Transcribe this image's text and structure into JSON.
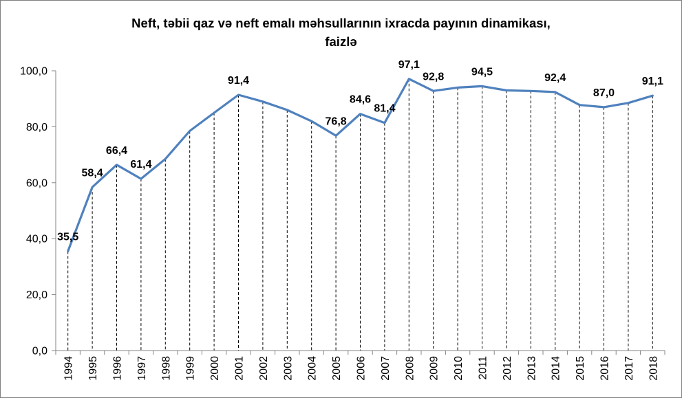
{
  "chart_data": {
    "type": "line",
    "title_line1": "Neft, təbii qaz və neft emalı məhsullarının ixracda payının dinamikası,",
    "title_line2": "faizlə",
    "categories": [
      "1994",
      "1995",
      "1996",
      "1997",
      "1998",
      "1999",
      "2000",
      "2001",
      "2002",
      "2003",
      "2004",
      "2005",
      "2006",
      "2007",
      "2008",
      "2009",
      "2010",
      "2011",
      "2012",
      "2013",
      "2014",
      "2015",
      "2016",
      "2017",
      "2018"
    ],
    "series": [
      {
        "values": [
          35.5,
          58.4,
          66.4,
          61.4,
          68.5,
          78.5,
          85.0,
          91.4,
          89.0,
          86.0,
          82.0,
          76.8,
          84.6,
          81.4,
          97.1,
          92.8,
          94.0,
          94.5,
          93.0,
          92.8,
          92.4,
          87.8,
          87.0,
          88.5,
          91.1
        ],
        "labels": [
          "35,5",
          "58,4",
          "66,4",
          "61,4",
          "",
          "",
          "",
          "91,4",
          "",
          "",
          "",
          "76,8",
          "84,6",
          "81,4",
          "97,1",
          "92,8",
          "",
          "94,5",
          "",
          "",
          "92,4",
          "",
          "87,0",
          "",
          "91,1"
        ],
        "color": "#4f81bd"
      }
    ],
    "y_ticks": [
      "0,0",
      "20,0",
      "40,0",
      "60,0",
      "80,0",
      "100,0"
    ],
    "ylim": [
      0,
      100
    ],
    "grid": "vertical dashed drop lines"
  }
}
